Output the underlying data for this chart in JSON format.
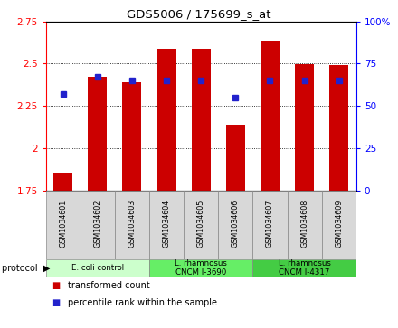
{
  "title": "GDS5006 / 175699_s_at",
  "samples": [
    "GSM1034601",
    "GSM1034602",
    "GSM1034603",
    "GSM1034604",
    "GSM1034605",
    "GSM1034606",
    "GSM1034607",
    "GSM1034608",
    "GSM1034609"
  ],
  "transformed_count": [
    1.855,
    2.42,
    2.39,
    2.585,
    2.59,
    2.14,
    2.635,
    2.495,
    2.49
  ],
  "percentile_rank": [
    57,
    67,
    65,
    65,
    65,
    55,
    65,
    65,
    65
  ],
  "ylim_left": [
    1.75,
    2.75
  ],
  "ylim_right": [
    0,
    100
  ],
  "yticks_left": [
    1.75,
    2.0,
    2.25,
    2.5,
    2.75
  ],
  "yticks_right": [
    0,
    25,
    50,
    75,
    100
  ],
  "ytick_labels_left": [
    "1.75",
    "2",
    "2.25",
    "2.5",
    "2.75"
  ],
  "ytick_labels_right": [
    "0",
    "25",
    "50",
    "75",
    "100%"
  ],
  "bar_color": "#cc0000",
  "dot_color": "#2222cc",
  "bar_width": 0.55,
  "groups": [
    {
      "label": "E. coli control",
      "indices": [
        0,
        1,
        2
      ],
      "color": "#ccffcc"
    },
    {
      "label": "L. rhamnosus\nCNCM I-3690",
      "indices": [
        3,
        4,
        5
      ],
      "color": "#66ee66"
    },
    {
      "label": "L. rhamnosus\nCNCM I-4317",
      "indices": [
        6,
        7,
        8
      ],
      "color": "#44cc44"
    }
  ],
  "legend_items": [
    {
      "label": "transformed count",
      "color": "#cc0000"
    },
    {
      "label": "percentile rank within the sample",
      "color": "#2222cc"
    }
  ],
  "sample_bg_color": "#d8d8d8",
  "plot_bg_color": "#ffffff"
}
